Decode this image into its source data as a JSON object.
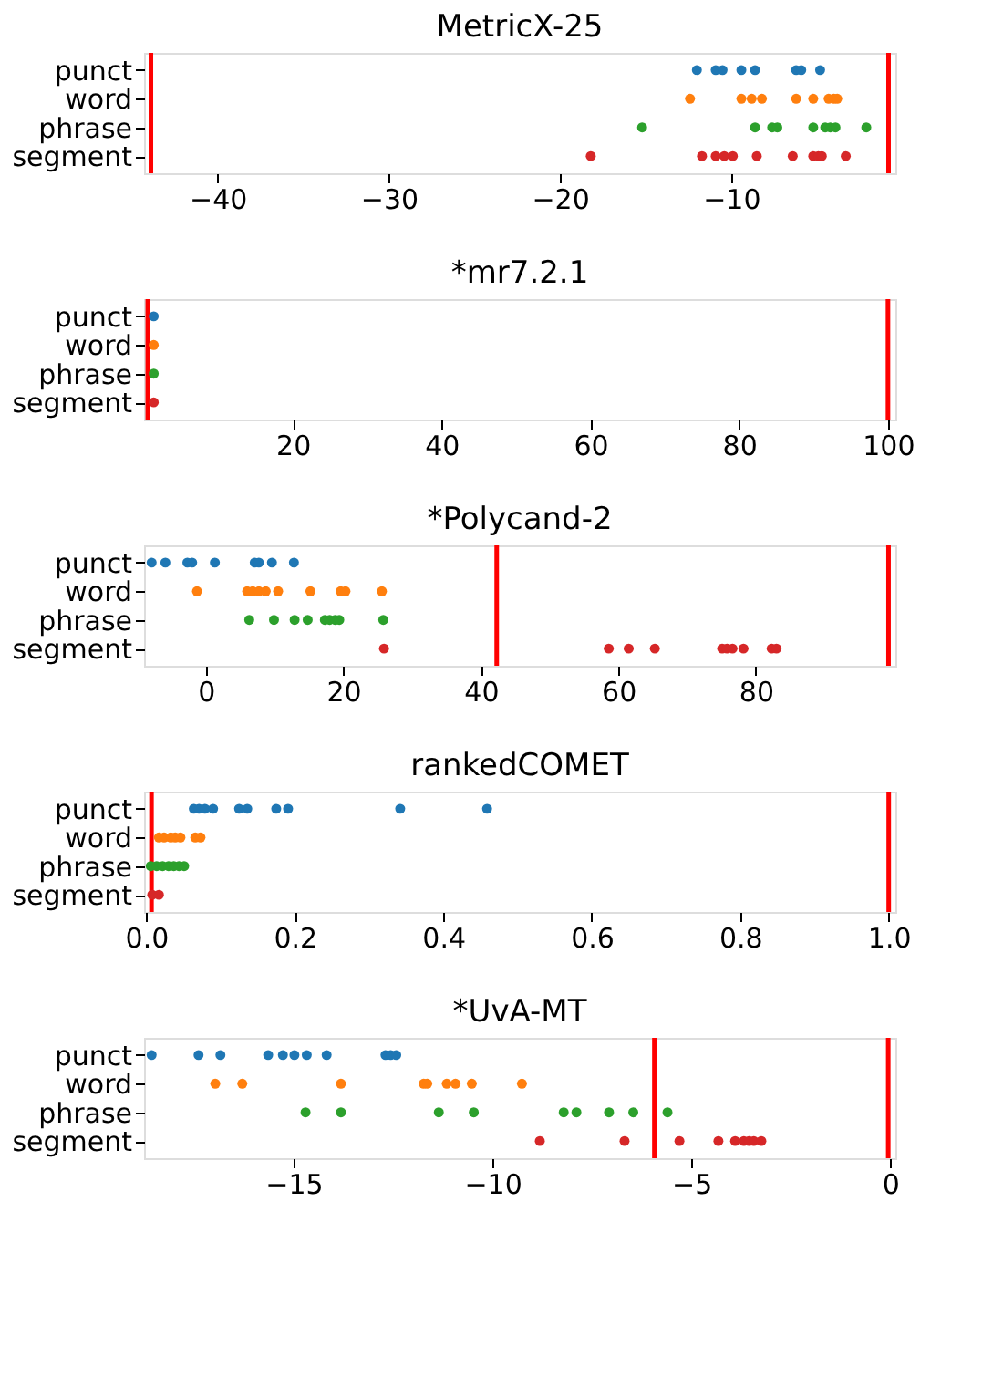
{
  "chart_data": [
    {
      "type": "scatter",
      "title": "MetricX-25",
      "orientation": "horizontal",
      "marker": "circle",
      "grid": false,
      "categories": [
        "punct",
        "word",
        "phrase",
        "segment"
      ],
      "xlim": [
        -44.3,
        -0.4
      ],
      "xticks": [
        -40,
        -30,
        -20,
        -10
      ],
      "ref_lines": [
        {
          "axis": "x",
          "value": -43.9,
          "color": "#ff0000"
        },
        {
          "axis": "x",
          "value": -0.8,
          "color": "#ff0000"
        }
      ],
      "series": [
        {
          "color": "#1f77b4",
          "x": [
            "punct",
            "punct",
            "punct",
            "punct",
            "punct",
            "punct",
            "punct",
            "punct"
          ],
          "values": [
            -12.0,
            -10.9,
            -10.5,
            -9.4,
            -8.6,
            -6.2,
            -5.9,
            -4.8
          ]
        },
        {
          "color": "#ff7f0e",
          "x": [
            "word",
            "word",
            "word",
            "word",
            "word",
            "word",
            "word",
            "word",
            "word"
          ],
          "values": [
            -12.4,
            -9.4,
            -8.8,
            -8.2,
            -6.2,
            -5.2,
            -4.3,
            -4.0,
            -3.8
          ]
        },
        {
          "color": "#2ca02c",
          "x": [
            "phrase",
            "phrase",
            "phrase",
            "phrase",
            "phrase",
            "phrase",
            "phrase",
            "phrase",
            "phrase"
          ],
          "values": [
            -15.2,
            -8.6,
            -7.6,
            -7.3,
            -5.2,
            -4.5,
            -4.2,
            -3.9,
            -2.1
          ]
        },
        {
          "color": "#d62728",
          "x": [
            "segment",
            "segment",
            "segment",
            "segment",
            "segment",
            "segment",
            "segment",
            "segment",
            "segment",
            "segment",
            "segment"
          ],
          "values": [
            -18.2,
            -11.7,
            -10.9,
            -10.4,
            -9.9,
            -8.5,
            -6.4,
            -5.2,
            -4.9,
            -4.7,
            -3.3
          ]
        }
      ]
    },
    {
      "type": "scatter",
      "title": "*mr7.2.1",
      "orientation": "horizontal",
      "marker": "circle",
      "grid": false,
      "categories": [
        "punct",
        "word",
        "phrase",
        "segment"
      ],
      "xlim": [
        0,
        101
      ],
      "xticks": [
        20,
        40,
        60,
        80,
        100
      ],
      "ref_lines": [
        {
          "axis": "x",
          "value": 0.5,
          "color": "#ff0000"
        },
        {
          "axis": "x",
          "value": 100,
          "color": "#ff0000"
        }
      ],
      "series": [
        {
          "color": "#1f77b4",
          "x": [
            "punct"
          ],
          "values": [
            1.3
          ]
        },
        {
          "color": "#ff7f0e",
          "x": [
            "word"
          ],
          "values": [
            1.3
          ]
        },
        {
          "color": "#2ca02c",
          "x": [
            "phrase"
          ],
          "values": [
            1.3
          ]
        },
        {
          "color": "#d62728",
          "x": [
            "segment"
          ],
          "values": [
            1.3
          ]
        }
      ]
    },
    {
      "type": "scatter",
      "title": "*Polycand-2",
      "orientation": "horizontal",
      "marker": "circle",
      "grid": false,
      "categories": [
        "punct",
        "word",
        "phrase",
        "segment"
      ],
      "xlim": [
        -9,
        100.3
      ],
      "xticks": [
        0,
        20,
        40,
        60,
        80
      ],
      "ref_lines": [
        {
          "axis": "x",
          "value": 42.3,
          "color": "#ff0000"
        },
        {
          "axis": "x",
          "value": 99.3,
          "color": "#ff0000"
        }
      ],
      "series": [
        {
          "color": "#1f77b4",
          "x": [
            "punct",
            "punct",
            "punct",
            "punct",
            "punct",
            "punct",
            "punct",
            "punct",
            "punct"
          ],
          "values": [
            -7.9,
            -5.9,
            -2.7,
            -2.0,
            1.3,
            7.1,
            7.7,
            9.6,
            12.8
          ]
        },
        {
          "color": "#ff7f0e",
          "x": [
            "word",
            "word",
            "word",
            "word",
            "word",
            "word",
            "word",
            "word",
            "word",
            "word"
          ],
          "values": [
            -1.3,
            6.0,
            6.8,
            7.7,
            8.7,
            10.5,
            15.2,
            19.6,
            20.3,
            25.6
          ]
        },
        {
          "color": "#2ca02c",
          "x": [
            "phrase",
            "phrase",
            "phrase",
            "phrase",
            "phrase",
            "phrase",
            "phrase",
            "phrase",
            "phrase"
          ],
          "values": [
            6.3,
            9.9,
            12.9,
            14.8,
            17.3,
            18.0,
            18.8,
            19.4,
            25.8
          ]
        },
        {
          "color": "#d62728",
          "x": [
            "segment",
            "segment",
            "segment",
            "segment",
            "segment",
            "segment",
            "segment",
            "segment",
            "segment",
            "segment"
          ],
          "values": [
            25.9,
            58.6,
            61.5,
            65.3,
            75.1,
            75.8,
            76.6,
            78.2,
            82.3,
            83.0
          ]
        }
      ]
    },
    {
      "type": "scatter",
      "title": "rankedCOMET",
      "orientation": "horizontal",
      "marker": "circle",
      "grid": false,
      "categories": [
        "punct",
        "word",
        "phrase",
        "segment"
      ],
      "xlim": [
        -0.003,
        1.009
      ],
      "xticks": [
        {
          "value": 0,
          "label": "0.0"
        },
        0.2,
        0.4,
        0.6,
        0.8,
        {
          "value": 1,
          "label": "1.0"
        }
      ],
      "ref_lines": [
        {
          "axis": "x",
          "value": 0.007,
          "color": "#ff0000"
        },
        {
          "axis": "x",
          "value": 1.0,
          "color": "#ff0000"
        }
      ],
      "series": [
        {
          "color": "#1f77b4",
          "x": [
            "punct",
            "punct",
            "punct",
            "punct",
            "punct",
            "punct",
            "punct",
            "punct",
            "punct",
            "punct"
          ],
          "values": [
            0.064,
            0.071,
            0.079,
            0.09,
            0.125,
            0.136,
            0.175,
            0.191,
            0.342,
            0.459
          ]
        },
        {
          "color": "#ff7f0e",
          "x": [
            "word",
            "word",
            "word",
            "word",
            "word",
            "word",
            "word"
          ],
          "values": [
            0.017,
            0.024,
            0.033,
            0.039,
            0.046,
            0.066,
            0.073
          ]
        },
        {
          "color": "#2ca02c",
          "x": [
            "phrase",
            "phrase",
            "phrase",
            "phrase",
            "phrase",
            "phrase",
            "phrase"
          ],
          "values": [
            0.006,
            0.014,
            0.022,
            0.03,
            0.037,
            0.044,
            0.051
          ]
        },
        {
          "color": "#d62728",
          "x": [
            "segment",
            "segment"
          ],
          "values": [
            0.008,
            0.017
          ]
        }
      ]
    },
    {
      "type": "scatter",
      "title": "*UvA-MT",
      "orientation": "horizontal",
      "marker": "circle",
      "grid": false,
      "categories": [
        "punct",
        "word",
        "phrase",
        "segment"
      ],
      "xlim": [
        -18.76,
        0.13
      ],
      "xticks": [
        -15,
        -10,
        -5,
        0
      ],
      "ref_lines": [
        {
          "axis": "x",
          "value": -5.93,
          "color": "#ff0000"
        },
        {
          "axis": "x",
          "value": -0.05,
          "color": "#ff0000"
        }
      ],
      "series": [
        {
          "color": "#1f77b4",
          "x": [
            "punct",
            "punct",
            "punct",
            "punct",
            "punct",
            "punct",
            "punct",
            "punct",
            "punct",
            "punct",
            "punct"
          ],
          "values": [
            -18.57,
            -17.39,
            -16.84,
            -15.64,
            -15.27,
            -14.98,
            -14.67,
            -14.17,
            -12.69,
            -12.56,
            -12.42
          ]
        },
        {
          "color": "#ff7f0e",
          "x": [
            "word",
            "word",
            "word",
            "word",
            "word",
            "word",
            "word",
            "word",
            "word"
          ],
          "values": [
            -16.97,
            -16.29,
            -13.81,
            -11.73,
            -11.64,
            -11.15,
            -10.93,
            -10.52,
            -9.26
          ]
        },
        {
          "color": "#2ca02c",
          "x": [
            "phrase",
            "phrase",
            "phrase",
            "phrase",
            "phrase",
            "phrase",
            "phrase",
            "phrase",
            "phrase"
          ],
          "values": [
            -14.7,
            -13.81,
            -11.35,
            -10.47,
            -8.21,
            -7.89,
            -7.07,
            -6.46,
            -5.6
          ]
        },
        {
          "color": "#d62728",
          "x": [
            "segment",
            "segment",
            "segment",
            "segment",
            "segment",
            "segment",
            "segment",
            "segment",
            "segment"
          ],
          "values": [
            -8.81,
            -6.68,
            -5.3,
            -4.32,
            -3.9,
            -3.68,
            -3.55,
            -3.43,
            -3.24
          ]
        }
      ]
    }
  ]
}
